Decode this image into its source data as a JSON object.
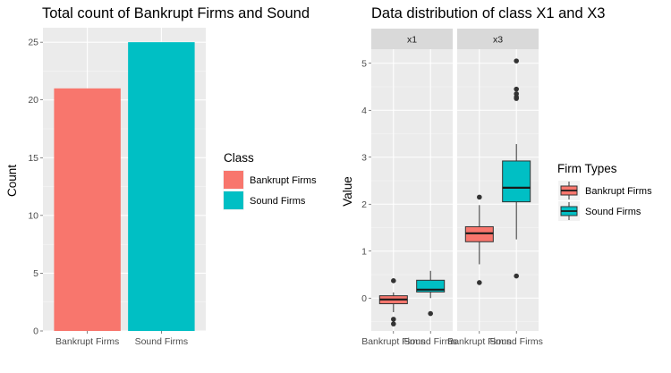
{
  "chart_data": [
    {
      "type": "bar",
      "title": "Total count of Bankrupt Firms and Sound",
      "xlabel": "",
      "ylabel": "Count",
      "categories": [
        "Bankrupt Firms",
        "Sound Firms"
      ],
      "values": [
        21,
        25
      ],
      "ylim": [
        0,
        26.25
      ],
      "yticks": [
        0,
        5,
        10,
        15,
        20,
        25
      ],
      "colors": [
        "#F8766D",
        "#00BFC4"
      ],
      "grid": true,
      "legend": {
        "title": "Class",
        "position": "right",
        "entries": [
          "Bankrupt Firms",
          "Sound Firms"
        ]
      }
    },
    {
      "type": "box",
      "title": "Data distribution of class X1 and X3",
      "xlabel": "",
      "ylabel": "Value",
      "facets": [
        "x1",
        "x3"
      ],
      "categories": [
        "Bankrupt Firms",
        "Sound Firms"
      ],
      "ylim": [
        -0.7,
        5.3
      ],
      "yticks": [
        0,
        1,
        2,
        3,
        4,
        5
      ],
      "colors": [
        "#F8766D",
        "#00BFC4"
      ],
      "grid": true,
      "legend": {
        "title": "Firm Types",
        "position": "right",
        "entries": [
          "Bankrupt Firms",
          "Sound Firms"
        ]
      },
      "boxes": [
        {
          "facet": "x1",
          "category": "Bankrupt Firms",
          "whisker_low": -0.3,
          "q1": -0.12,
          "median": -0.03,
          "q3": 0.05,
          "whisker_high": 0.12,
          "outliers": [
            0.37,
            -0.45,
            -0.55
          ]
        },
        {
          "facet": "x1",
          "category": "Sound Firms",
          "whisker_low": 0.0,
          "q1": 0.13,
          "median": 0.18,
          "q3": 0.38,
          "whisker_high": 0.58,
          "outliers": [
            -0.33
          ]
        },
        {
          "facet": "x3",
          "category": "Bankrupt Firms",
          "whisker_low": 0.72,
          "q1": 1.2,
          "median": 1.38,
          "q3": 1.52,
          "whisker_high": 1.98,
          "outliers": [
            2.15,
            0.33
          ]
        },
        {
          "facet": "x3",
          "category": "Sound Firms",
          "whisker_low": 1.25,
          "q1": 2.05,
          "median": 2.35,
          "q3": 2.92,
          "whisker_high": 3.28,
          "outliers": [
            5.05,
            4.45,
            4.35,
            4.28,
            4.25,
            0.47
          ]
        }
      ]
    }
  ]
}
